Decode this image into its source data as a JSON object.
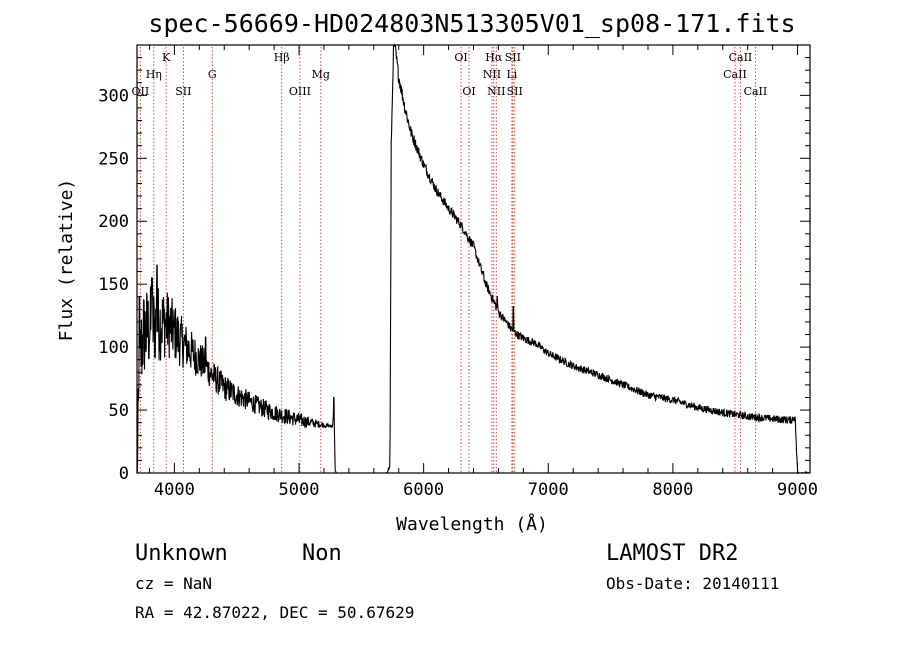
{
  "chart_data": {
    "type": "line",
    "title": "spec-56669-HD024803N513305V01_sp08-171.fits",
    "xlabel": "Wavelength (Å)",
    "ylabel": "Flux (relative)",
    "xlim": [
      3700,
      9100
    ],
    "ylim": [
      0,
      340
    ],
    "xticks": [
      4000,
      5000,
      6000,
      7000,
      8000,
      9000
    ],
    "yticks": [
      0,
      50,
      100,
      150,
      200,
      250,
      300
    ],
    "grid": false,
    "lines": [
      {
        "label": "K",
        "x": 3934
      },
      {
        "label": "Hη",
        "x": 3835
      },
      {
        "label": "OII",
        "x": 3727
      },
      {
        "label": "SII",
        "x": 4072
      },
      {
        "label": "G",
        "x": 4304
      },
      {
        "label": "Hβ",
        "x": 4861
      },
      {
        "label": "OIII",
        "x": 5007
      },
      {
        "label": "Mg",
        "x": 5175
      },
      {
        "label": "OI",
        "x": 6300
      },
      {
        "label": "OI",
        "x": 6364
      },
      {
        "label": "Hα",
        "x": 6563
      },
      {
        "label": "NII",
        "x": 6548
      },
      {
        "label": "NII",
        "x": 6583
      },
      {
        "label": "SII",
        "x": 6716
      },
      {
        "label": "Li",
        "x": 6708
      },
      {
        "label": "SII",
        "x": 6731
      },
      {
        "label": "CaII",
        "x": 8542
      },
      {
        "label": "CaII",
        "x": 8498
      },
      {
        "label": "CaII",
        "x": 8662
      }
    ],
    "spectrum_anchors": [
      [
        3700,
        0
      ],
      [
        3705,
        0
      ],
      [
        3710,
        35
      ],
      [
        3720,
        75
      ],
      [
        3730,
        95
      ],
      [
        3750,
        110
      ],
      [
        3800,
        115
      ],
      [
        3850,
        118
      ],
      [
        3900,
        120
      ],
      [
        3950,
        118
      ],
      [
        4000,
        112
      ],
      [
        4050,
        105
      ],
      [
        4100,
        100
      ],
      [
        4150,
        95
      ],
      [
        4200,
        90
      ],
      [
        4250,
        85
      ],
      [
        4300,
        78
      ],
      [
        4400,
        68
      ],
      [
        4500,
        62
      ],
      [
        4600,
        57
      ],
      [
        4700,
        52
      ],
      [
        4800,
        48
      ],
      [
        4900,
        45
      ],
      [
        5000,
        42
      ],
      [
        5100,
        40
      ],
      [
        5200,
        38
      ],
      [
        5270,
        37
      ],
      [
        5280,
        55
      ],
      [
        5290,
        2
      ],
      [
        5300,
        0
      ],
      [
        5700,
        0
      ],
      [
        5730,
        5
      ],
      [
        5740,
        260
      ],
      [
        5760,
        345
      ],
      [
        5800,
        315
      ],
      [
        5850,
        290
      ],
      [
        5900,
        270
      ],
      [
        6000,
        245
      ],
      [
        6100,
        225
      ],
      [
        6200,
        210
      ],
      [
        6300,
        197
      ],
      [
        6400,
        180
      ],
      [
        6500,
        150
      ],
      [
        6600,
        128
      ],
      [
        6700,
        115
      ],
      [
        6750,
        110
      ],
      [
        6800,
        107
      ],
      [
        6900,
        103
      ],
      [
        7000,
        95
      ],
      [
        7200,
        85
      ],
      [
        7400,
        78
      ],
      [
        7600,
        70
      ],
      [
        7800,
        62
      ],
      [
        8000,
        58
      ],
      [
        8200,
        52
      ],
      [
        8400,
        48
      ],
      [
        8600,
        45
      ],
      [
        8800,
        43
      ],
      [
        8950,
        42
      ],
      [
        8980,
        45
      ],
      [
        9000,
        0
      ],
      [
        9100,
        0
      ]
    ],
    "spectrum_noise": [
      [
        3700,
        40
      ],
      [
        3900,
        30
      ],
      [
        4100,
        18
      ],
      [
        4300,
        12
      ],
      [
        4600,
        8
      ],
      [
        5000,
        6
      ],
      [
        5300,
        0
      ],
      [
        5700,
        0
      ],
      [
        5760,
        6
      ],
      [
        6000,
        4
      ],
      [
        7000,
        3
      ],
      [
        9000,
        3
      ],
      [
        9100,
        0
      ]
    ],
    "spectrum_spikes": [
      [
        3720,
        140
      ],
      [
        3820,
        155
      ],
      [
        3860,
        165
      ],
      [
        3950,
        135
      ],
      [
        4250,
        108
      ],
      [
        5280,
        60
      ],
      [
        6480,
        160
      ],
      [
        6720,
        132
      ],
      [
        6590,
        140
      ]
    ]
  },
  "footer": {
    "class_text": "Unknown",
    "subclass_text": "Non",
    "cz_text": "cz = NaN",
    "coords_text": "RA =  42.87022, DEC =  50.67629",
    "survey_text": "LAMOST DR2",
    "obs_date_text": "Obs-Date: 20140111"
  },
  "colors": {
    "axes": "#000000",
    "spectrum": "#000000",
    "lines": "#c0392b",
    "background": "#ffffff"
  }
}
